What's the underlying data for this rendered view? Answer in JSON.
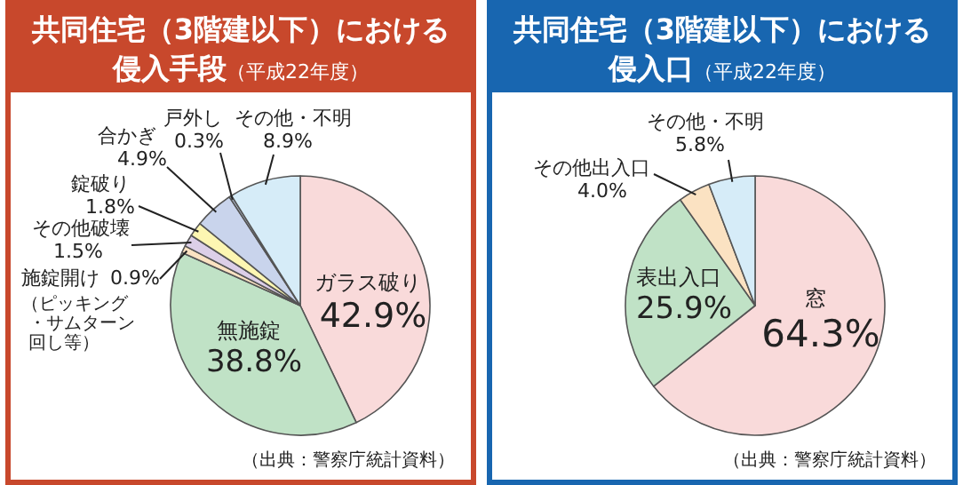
{
  "chart_data": [
    {
      "type": "pie",
      "title": "共同住宅（3階建以下）における侵入手段",
      "subtitle": "（平成22年度）",
      "categories": [
        "ガラス破り",
        "無施錠",
        "施錠開け",
        "その他破壊",
        "錠破り",
        "合かぎ",
        "戸外し",
        "その他・不明"
      ],
      "values": [
        42.9,
        38.8,
        0.9,
        1.5,
        1.8,
        4.9,
        0.3,
        8.9
      ],
      "value_labels": [
        "42.9%",
        "38.8%",
        "0.9%",
        "1.5%",
        "1.8%",
        "4.9%",
        "0.3%",
        "8.9%"
      ],
      "colors": [
        "#f9dada",
        "#c0e2c6",
        "#fbe2c2",
        "#dccfe8",
        "#fdf6b2",
        "#c9d4ec",
        "#b9c6dc",
        "#d6ecf8"
      ],
      "annotations": [
        {
          "text": "（ピッキング・サムターン回し等）",
          "x": "施錠開け"
        },
        "（出典：警察庁統計資料）"
      ]
    },
    {
      "type": "pie",
      "title": "共同住宅（3階建以下）における侵入口",
      "subtitle": "（平成22年度）",
      "categories": [
        "窓",
        "表出入口",
        "その他出入口",
        "その他・不明"
      ],
      "values": [
        64.3,
        25.9,
        4.0,
        5.8
      ],
      "value_labels": [
        "64.3%",
        "25.9%",
        "4.0%",
        "5.8%"
      ],
      "colors": [
        "#f9dada",
        "#c0e2c6",
        "#fbe2c2",
        "#d6ecf8"
      ],
      "annotations": [
        "（出典：警察庁統計資料）"
      ]
    }
  ]
}
